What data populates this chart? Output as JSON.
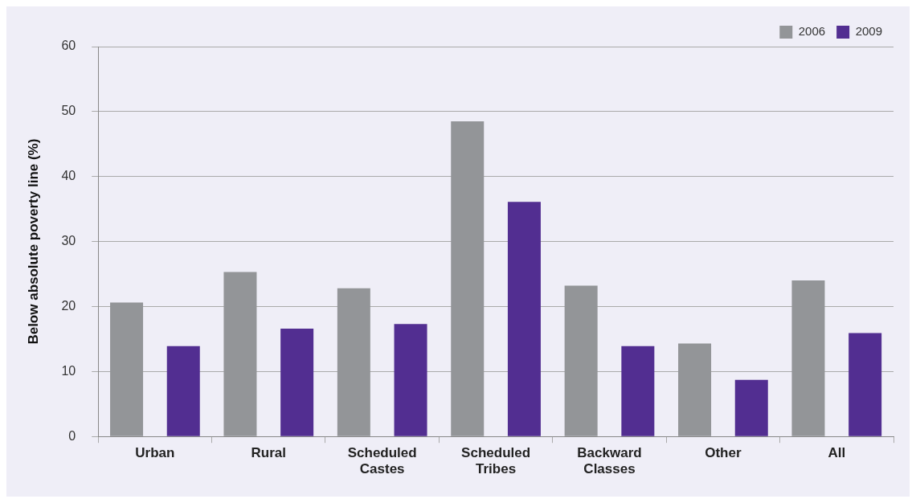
{
  "chart_data": {
    "type": "bar",
    "ylabel": "Below absolute poverty line (%)",
    "categories": [
      "Urban",
      "Rural",
      "Scheduled Castes",
      "Scheduled Tribes",
      "Backward Classes",
      "Other",
      "All"
    ],
    "series": [
      {
        "name": "2006",
        "color": "#939598",
        "values": [
          20.6,
          25.3,
          22.8,
          48.5,
          23.2,
          14.3,
          24.0
        ]
      },
      {
        "name": "2009",
        "color": "#522e91",
        "values": [
          13.9,
          16.6,
          17.3,
          36.1,
          13.9,
          8.7,
          15.9
        ]
      }
    ],
    "ylim": [
      0,
      60
    ],
    "yticks": [
      0,
      10,
      20,
      30,
      40,
      50,
      60
    ],
    "grid": "y",
    "legend": "top right"
  }
}
